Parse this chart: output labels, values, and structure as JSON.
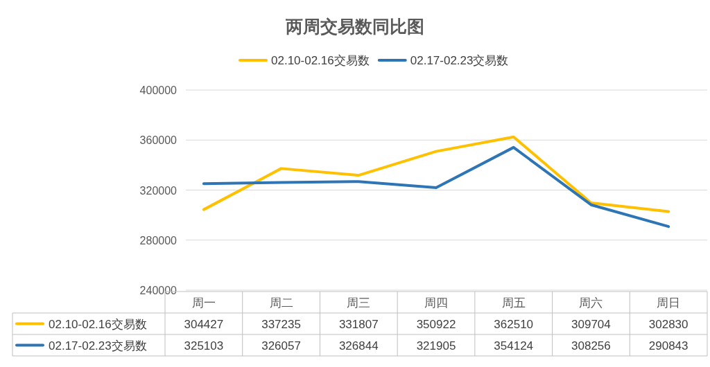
{
  "chart_data": {
    "type": "line",
    "title": "两周交易数同比图",
    "categories": [
      "周一",
      "周二",
      "周三",
      "周四",
      "周五",
      "周六",
      "周日"
    ],
    "series": [
      {
        "name": "02.10-02.16交易数",
        "color": "#ffc000",
        "values": [
          304427,
          337235,
          331807,
          350922,
          362510,
          309704,
          302830
        ]
      },
      {
        "name": "02.17-02.23交易数",
        "color": "#2e75b6",
        "values": [
          325103,
          326057,
          326844,
          321905,
          354124,
          308256,
          290843
        ]
      }
    ],
    "ylim": [
      240000,
      400000
    ],
    "yticks": [
      240000,
      280000,
      320000,
      360000,
      400000
    ],
    "grid": "y",
    "legend": "top",
    "data_labels": true,
    "line_style": "solid",
    "marker": "none"
  }
}
